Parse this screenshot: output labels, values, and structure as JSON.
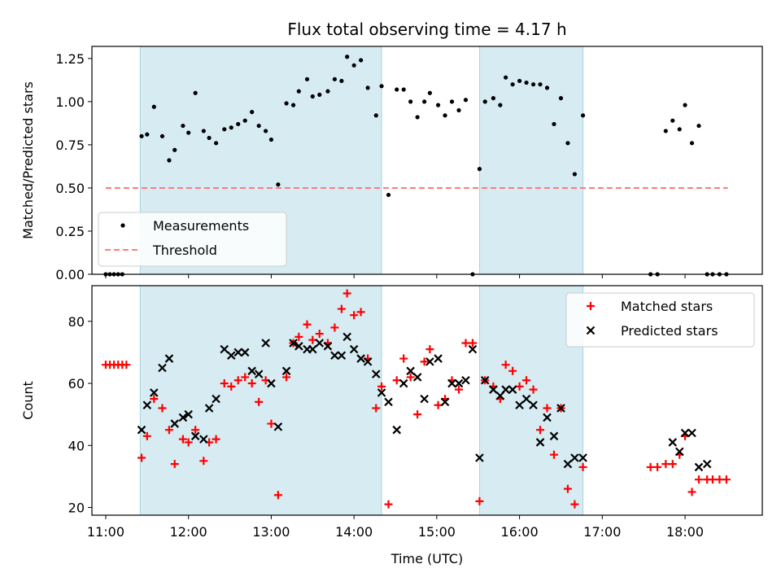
{
  "figure_title": "Flux total observing time = 4.17 h",
  "chart_data": [
    {
      "type": "scatter",
      "ylabel": "Matched/Predicted stars",
      "xlim": [
        "10:50",
        "18:56"
      ],
      "ylim": [
        0,
        1.32
      ],
      "yticks": [
        "0.00",
        "0.25",
        "0.50",
        "0.75",
        "1.00",
        "1.25"
      ],
      "shaded_intervals": [
        [
          "11:25",
          "14:20"
        ],
        [
          "15:31",
          "16:46"
        ]
      ],
      "threshold": {
        "label": "Threshold",
        "value": 0.5,
        "x_range": [
          "11:00",
          "18:31"
        ],
        "color": "#ff7b7b"
      },
      "legend": {
        "position": "lower-left",
        "entries": [
          "Measurements",
          "Threshold"
        ]
      },
      "series": [
        {
          "name": "Measurements",
          "color": "#000000",
          "points": [
            [
              "11:00",
              0
            ],
            [
              "11:03",
              0
            ],
            [
              "11:06",
              0
            ],
            [
              "11:09",
              0
            ],
            [
              "11:12",
              0
            ],
            [
              "11:26",
              0.8
            ],
            [
              "11:30",
              0.81
            ],
            [
              "11:35",
              0.97
            ],
            [
              "11:41",
              0.8
            ],
            [
              "11:46",
              0.66
            ],
            [
              "11:50",
              0.72
            ],
            [
              "11:56",
              0.86
            ],
            [
              "12:00",
              0.82
            ],
            [
              "12:05",
              1.05
            ],
            [
              "12:11",
              0.83
            ],
            [
              "12:15",
              0.79
            ],
            [
              "12:20",
              0.76
            ],
            [
              "12:26",
              0.84
            ],
            [
              "12:31",
              0.85
            ],
            [
              "12:36",
              0.87
            ],
            [
              "12:41",
              0.89
            ],
            [
              "12:46",
              0.94
            ],
            [
              "12:51",
              0.86
            ],
            [
              "12:56",
              0.83
            ],
            [
              "13:00",
              0.78
            ],
            [
              "13:05",
              0.52
            ],
            [
              "13:11",
              0.99
            ],
            [
              "13:16",
              0.98
            ],
            [
              "13:20",
              1.06
            ],
            [
              "13:26",
              1.13
            ],
            [
              "13:30",
              1.03
            ],
            [
              "13:35",
              1.04
            ],
            [
              "13:41",
              1.06
            ],
            [
              "13:46",
              1.13
            ],
            [
              "13:51",
              1.12
            ],
            [
              "13:55",
              1.26
            ],
            [
              "14:00",
              1.21
            ],
            [
              "14:05",
              1.24
            ],
            [
              "14:10",
              1.08
            ],
            [
              "14:16",
              0.92
            ],
            [
              "14:20",
              1.09
            ],
            [
              "14:25",
              0.46
            ],
            [
              "14:31",
              1.07
            ],
            [
              "14:36",
              1.07
            ],
            [
              "14:41",
              1.0
            ],
            [
              "14:46",
              0.91
            ],
            [
              "14:51",
              1.0
            ],
            [
              "14:55",
              1.05
            ],
            [
              "15:01",
              0.98
            ],
            [
              "15:06",
              0.92
            ],
            [
              "15:11",
              1.0
            ],
            [
              "15:16",
              0.95
            ],
            [
              "15:21",
              1.01
            ],
            [
              "15:26",
              0
            ],
            [
              "15:31",
              0.61
            ],
            [
              "15:35",
              1.0
            ],
            [
              "15:41",
              1.02
            ],
            [
              "15:46",
              0.98
            ],
            [
              "15:50",
              1.14
            ],
            [
              "15:55",
              1.1
            ],
            [
              "16:00",
              1.12
            ],
            [
              "16:05",
              1.11
            ],
            [
              "16:10",
              1.1
            ],
            [
              "16:15",
              1.1
            ],
            [
              "16:20",
              1.08
            ],
            [
              "16:25",
              0.87
            ],
            [
              "16:30",
              1.02
            ],
            [
              "16:35",
              0.76
            ],
            [
              "16:40",
              0.58
            ],
            [
              "16:46",
              0.92
            ],
            [
              "17:35",
              0
            ],
            [
              "17:40",
              0
            ],
            [
              "17:46",
              0.83
            ],
            [
              "17:51",
              0.89
            ],
            [
              "17:56",
              0.84
            ],
            [
              "18:00",
              0.98
            ],
            [
              "18:05",
              0.76
            ],
            [
              "18:10",
              0.86
            ],
            [
              "18:16",
              0
            ],
            [
              "18:20",
              0
            ],
            [
              "18:25",
              0
            ],
            [
              "18:30",
              0
            ]
          ]
        }
      ]
    },
    {
      "type": "scatter",
      "xlabel": "Time (UTC)",
      "ylabel": "Count",
      "xlim": [
        "10:50",
        "18:56"
      ],
      "ylim": [
        17.5,
        91.5
      ],
      "xticks": [
        "11:00",
        "12:00",
        "13:00",
        "14:00",
        "15:00",
        "16:00",
        "17:00",
        "18:00"
      ],
      "yticks": [
        "20",
        "40",
        "60",
        "80"
      ],
      "shaded_intervals": [
        [
          "11:25",
          "14:20"
        ],
        [
          "15:31",
          "16:46"
        ]
      ],
      "legend": {
        "position": "top-right",
        "entries": [
          "Matched stars",
          "Predicted stars"
        ]
      },
      "series": [
        {
          "name": "Matched stars",
          "color": "#ff0000",
          "points": [
            [
              "11:00",
              66
            ],
            [
              "11:03",
              66
            ],
            [
              "11:06",
              66
            ],
            [
              "11:09",
              66
            ],
            [
              "11:12",
              66
            ],
            [
              "11:15",
              66
            ],
            [
              "11:26",
              36
            ],
            [
              "11:30",
              43
            ],
            [
              "11:35",
              55
            ],
            [
              "11:41",
              52
            ],
            [
              "11:46",
              45
            ],
            [
              "11:50",
              34
            ],
            [
              "11:56",
              42
            ],
            [
              "12:00",
              41
            ],
            [
              "12:05",
              45
            ],
            [
              "12:11",
              35
            ],
            [
              "12:15",
              41
            ],
            [
              "12:20",
              42
            ],
            [
              "12:26",
              60
            ],
            [
              "12:31",
              59
            ],
            [
              "12:36",
              61
            ],
            [
              "12:41",
              62
            ],
            [
              "12:46",
              60
            ],
            [
              "12:51",
              54
            ],
            [
              "12:56",
              61
            ],
            [
              "13:00",
              47
            ],
            [
              "13:05",
              24
            ],
            [
              "13:11",
              62
            ],
            [
              "13:16",
              73
            ],
            [
              "13:20",
              75
            ],
            [
              "13:26",
              79
            ],
            [
              "13:30",
              74
            ],
            [
              "13:35",
              76
            ],
            [
              "13:41",
              73
            ],
            [
              "13:46",
              78
            ],
            [
              "13:51",
              84
            ],
            [
              "13:55",
              89
            ],
            [
              "14:00",
              82
            ],
            [
              "14:05",
              83
            ],
            [
              "14:10",
              68
            ],
            [
              "14:16",
              52
            ],
            [
              "14:20",
              59
            ],
            [
              "14:25",
              21
            ],
            [
              "14:31",
              61
            ],
            [
              "14:36",
              68
            ],
            [
              "14:41",
              62
            ],
            [
              "14:46",
              50
            ],
            [
              "14:51",
              67
            ],
            [
              "14:55",
              71
            ],
            [
              "15:01",
              53
            ],
            [
              "15:06",
              55
            ],
            [
              "15:11",
              61
            ],
            [
              "15:16",
              58
            ],
            [
              "15:21",
              73
            ],
            [
              "15:26",
              73
            ],
            [
              "15:31",
              22
            ],
            [
              "15:35",
              61
            ],
            [
              "15:41",
              59
            ],
            [
              "15:46",
              55
            ],
            [
              "15:50",
              66
            ],
            [
              "15:55",
              64
            ],
            [
              "16:00",
              59
            ],
            [
              "16:05",
              61
            ],
            [
              "16:10",
              58
            ],
            [
              "16:15",
              45
            ],
            [
              "16:20",
              52
            ],
            [
              "16:25",
              37
            ],
            [
              "16:30",
              52
            ],
            [
              "16:35",
              26
            ],
            [
              "16:40",
              21
            ],
            [
              "16:46",
              33
            ],
            [
              "17:35",
              33
            ],
            [
              "17:40",
              33
            ],
            [
              "17:46",
              34
            ],
            [
              "17:51",
              34
            ],
            [
              "17:56",
              37
            ],
            [
              "18:00",
              43
            ],
            [
              "18:05",
              25
            ],
            [
              "18:10",
              29
            ],
            [
              "18:16",
              29
            ],
            [
              "18:20",
              29
            ],
            [
              "18:25",
              29
            ],
            [
              "18:30",
              29
            ]
          ]
        },
        {
          "name": "Predicted stars",
          "color": "#000000",
          "points": [
            [
              "11:26",
              45
            ],
            [
              "11:30",
              53
            ],
            [
              "11:35",
              57
            ],
            [
              "11:41",
              65
            ],
            [
              "11:46",
              68
            ],
            [
              "11:50",
              47
            ],
            [
              "11:56",
              49
            ],
            [
              "12:00",
              50
            ],
            [
              "12:05",
              43
            ],
            [
              "12:11",
              42
            ],
            [
              "12:15",
              52
            ],
            [
              "12:20",
              55
            ],
            [
              "12:26",
              71
            ],
            [
              "12:31",
              69
            ],
            [
              "12:36",
              70
            ],
            [
              "12:41",
              70
            ],
            [
              "12:46",
              64
            ],
            [
              "12:51",
              63
            ],
            [
              "12:56",
              73
            ],
            [
              "13:00",
              60
            ],
            [
              "13:05",
              46
            ],
            [
              "13:11",
              64
            ],
            [
              "13:16",
              73
            ],
            [
              "13:20",
              72
            ],
            [
              "13:26",
              71
            ],
            [
              "13:30",
              71
            ],
            [
              "13:35",
              73
            ],
            [
              "13:41",
              72
            ],
            [
              "13:46",
              69
            ],
            [
              "13:51",
              69
            ],
            [
              "13:55",
              75
            ],
            [
              "14:00",
              71
            ],
            [
              "14:05",
              68
            ],
            [
              "14:10",
              67
            ],
            [
              "14:16",
              63
            ],
            [
              "14:20",
              57
            ],
            [
              "14:25",
              54
            ],
            [
              "14:31",
              45
            ],
            [
              "14:36",
              60
            ],
            [
              "14:41",
              64
            ],
            [
              "14:46",
              62
            ],
            [
              "14:51",
              55
            ],
            [
              "14:55",
              67
            ],
            [
              "15:01",
              68
            ],
            [
              "15:06",
              54
            ],
            [
              "15:11",
              60
            ],
            [
              "15:16",
              60
            ],
            [
              "15:21",
              61
            ],
            [
              "15:26",
              71
            ],
            [
              "15:31",
              36
            ],
            [
              "15:35",
              61
            ],
            [
              "15:41",
              58
            ],
            [
              "15:46",
              56
            ],
            [
              "15:50",
              58
            ],
            [
              "15:55",
              58
            ],
            [
              "16:00",
              53
            ],
            [
              "16:05",
              55
            ],
            [
              "16:10",
              53
            ],
            [
              "16:15",
              41
            ],
            [
              "16:20",
              49
            ],
            [
              "16:25",
              43
            ],
            [
              "16:30",
              52
            ],
            [
              "16:35",
              34
            ],
            [
              "16:40",
              36
            ],
            [
              "16:46",
              36
            ],
            [
              "17:51",
              41
            ],
            [
              "17:56",
              38
            ],
            [
              "18:00",
              44
            ],
            [
              "18:05",
              44
            ],
            [
              "18:10",
              33
            ],
            [
              "18:16",
              34
            ]
          ]
        }
      ]
    }
  ]
}
